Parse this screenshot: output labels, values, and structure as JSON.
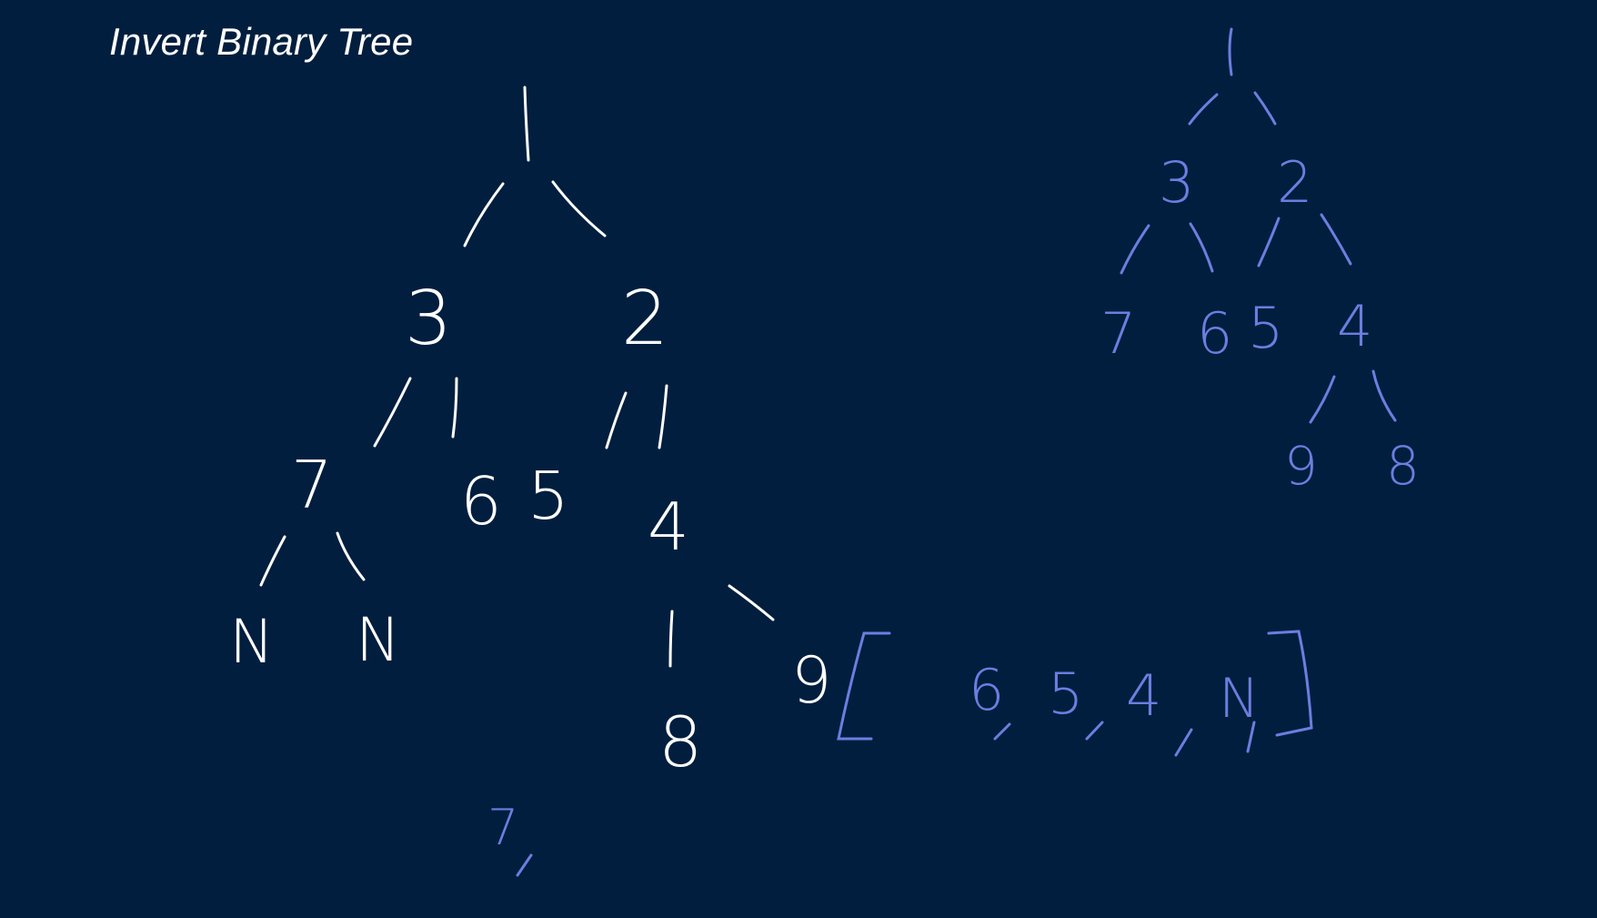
{
  "title": "Invert Binary Tree",
  "colors": {
    "background": "#021e3e",
    "original_ink": "#ffffff",
    "inverted_ink": "#6a7fe0"
  },
  "original_tree": {
    "root": "1",
    "left": "3",
    "right": "2",
    "left_left": "7",
    "left_right": "6",
    "right_left": "5",
    "right_right": "4",
    "seven_left": "N",
    "seven_right": "N",
    "four_left": "8",
    "four_right": "9"
  },
  "inverted_tree": {
    "root": "1",
    "left": "3",
    "right": "2",
    "left_left": "7",
    "left_right": "6",
    "right_left": "5",
    "right_right": "4",
    "four_left": "9",
    "four_right": "8"
  },
  "queue": {
    "items": [
      "6",
      "5",
      "4",
      "N"
    ]
  },
  "popped": {
    "value": "7"
  }
}
